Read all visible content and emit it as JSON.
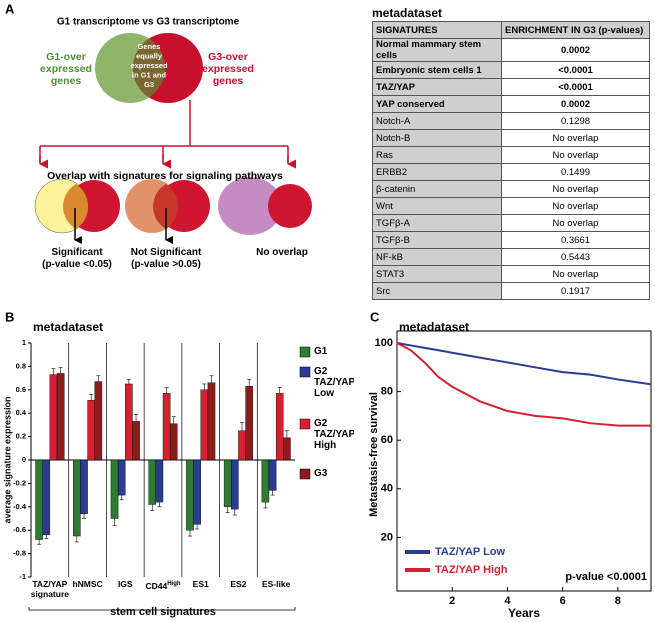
{
  "panel_labels": [
    "A",
    "B",
    "C"
  ],
  "diagram": {
    "title": "G1 transcriptome vs G3 transcriptome",
    "g1_label": [
      "G1-over",
      "expressed",
      "genes"
    ],
    "g3_label": [
      "G3-over",
      "expressed",
      "genes"
    ],
    "overlap_label": [
      "Genes",
      "equally",
      "expressed",
      "in G1 and",
      "G3"
    ],
    "pathways_title": "Overlap with signatures for signaling pathways",
    "outcomes": [
      {
        "lines": [
          "Significant",
          "(p-value <0.05)"
        ]
      },
      {
        "lines": [
          "Not Significant",
          "(p-value >0.05)"
        ]
      },
      {
        "lines": [
          "No overlap"
        ]
      }
    ]
  },
  "table": {
    "title": "metadataset",
    "header": [
      "SIGNATURES",
      "ENRICHMENT IN G3 (p-values)"
    ],
    "rows": [
      [
        "Normal mammary stem cells",
        "0.0002"
      ],
      [
        "Embryonic stem cells 1",
        "<0.0001"
      ],
      [
        "TAZ/YAP",
        "<0.0001"
      ],
      [
        "YAP conserved",
        "0.0002"
      ],
      [
        "Notch-A",
        "0.1298"
      ],
      [
        "Notch-B",
        "No overlap"
      ],
      [
        "Ras",
        "No overlap"
      ],
      [
        "ERBB2",
        "0.1499"
      ],
      [
        "β-catenin",
        "No overlap"
      ],
      [
        "Wnt",
        "No overlap"
      ],
      [
        "TGFβ-A",
        "No overlap"
      ],
      [
        "TGFβ-B",
        "0.3661"
      ],
      [
        "NF-kB",
        "0.5443"
      ],
      [
        "STAT3",
        "No overlap"
      ],
      [
        "Src",
        "0.1917"
      ]
    ]
  },
  "chart_data": [
    {
      "type": "bar",
      "title": "metadataset",
      "ylabel": "average signature expression",
      "xlabel": "stem cell signatures",
      "categories": [
        "TAZ/YAP signature",
        "hNMSC",
        "IGS",
        {
          "label": "CD44",
          "superscript": "High"
        },
        "ES1",
        "ES2",
        "ES-like"
      ],
      "series": [
        {
          "name": "G1",
          "color": "#2e7b32",
          "values": [
            -0.68,
            -0.65,
            -0.5,
            -0.38,
            -0.6,
            -0.4,
            -0.36
          ],
          "errors": [
            0.04,
            0.05,
            0.06,
            0.05,
            0.05,
            0.05,
            0.05
          ]
        },
        {
          "name": "G2 TAZ/YAP Low",
          "color": "#2c3c94",
          "values": [
            -0.64,
            -0.46,
            -0.3,
            -0.36,
            -0.55,
            -0.42,
            -0.26
          ],
          "errors": [
            0.03,
            0.04,
            0.04,
            0.04,
            0.04,
            0.05,
            0.04
          ]
        },
        {
          "name": "G2 TAZ/YAP High",
          "color": "#d42030",
          "values": [
            0.73,
            0.51,
            0.65,
            0.57,
            0.6,
            0.25,
            0.57
          ],
          "errors": [
            0.05,
            0.05,
            0.04,
            0.05,
            0.05,
            0.07,
            0.05
          ]
        },
        {
          "name": "G3",
          "color": "#8c1c1c",
          "values": [
            0.74,
            0.67,
            0.33,
            0.31,
            0.66,
            0.63,
            0.19
          ],
          "errors": [
            0.05,
            0.05,
            0.06,
            0.06,
            0.06,
            0.06,
            0.06
          ]
        }
      ],
      "ylim": [
        -1,
        1
      ],
      "yticks": [
        -1,
        -0.8,
        -0.6,
        -0.4,
        -0.2,
        0,
        0.2,
        0.4,
        0.6,
        0.8,
        1
      ]
    },
    {
      "type": "line",
      "title": "metadataset",
      "ylabel": "Metastasis-free survival",
      "xlabel": "Years",
      "annotation": "p-value <0.0001",
      "legend": "lower left",
      "x": [
        0,
        0.5,
        1,
        1.5,
        2,
        3,
        4,
        5,
        6,
        7,
        8,
        9.2
      ],
      "series": [
        {
          "name": "TAZ/YAP Low",
          "color": "#2c3c94",
          "values": [
            100,
            99,
            98,
            97,
            96,
            94,
            92,
            90,
            88,
            87,
            85,
            83
          ]
        },
        {
          "name": "TAZ/YAP High",
          "color": "#d42030",
          "values": [
            100,
            97,
            92,
            86,
            82,
            76,
            72,
            70,
            69,
            67,
            66,
            66
          ]
        }
      ],
      "xlim": [
        0,
        9.2
      ],
      "ylim": [
        0,
        100
      ],
      "xticks": [
        2,
        4,
        6,
        8
      ],
      "yticks": [
        20,
        40,
        60,
        80,
        100
      ]
    }
  ]
}
